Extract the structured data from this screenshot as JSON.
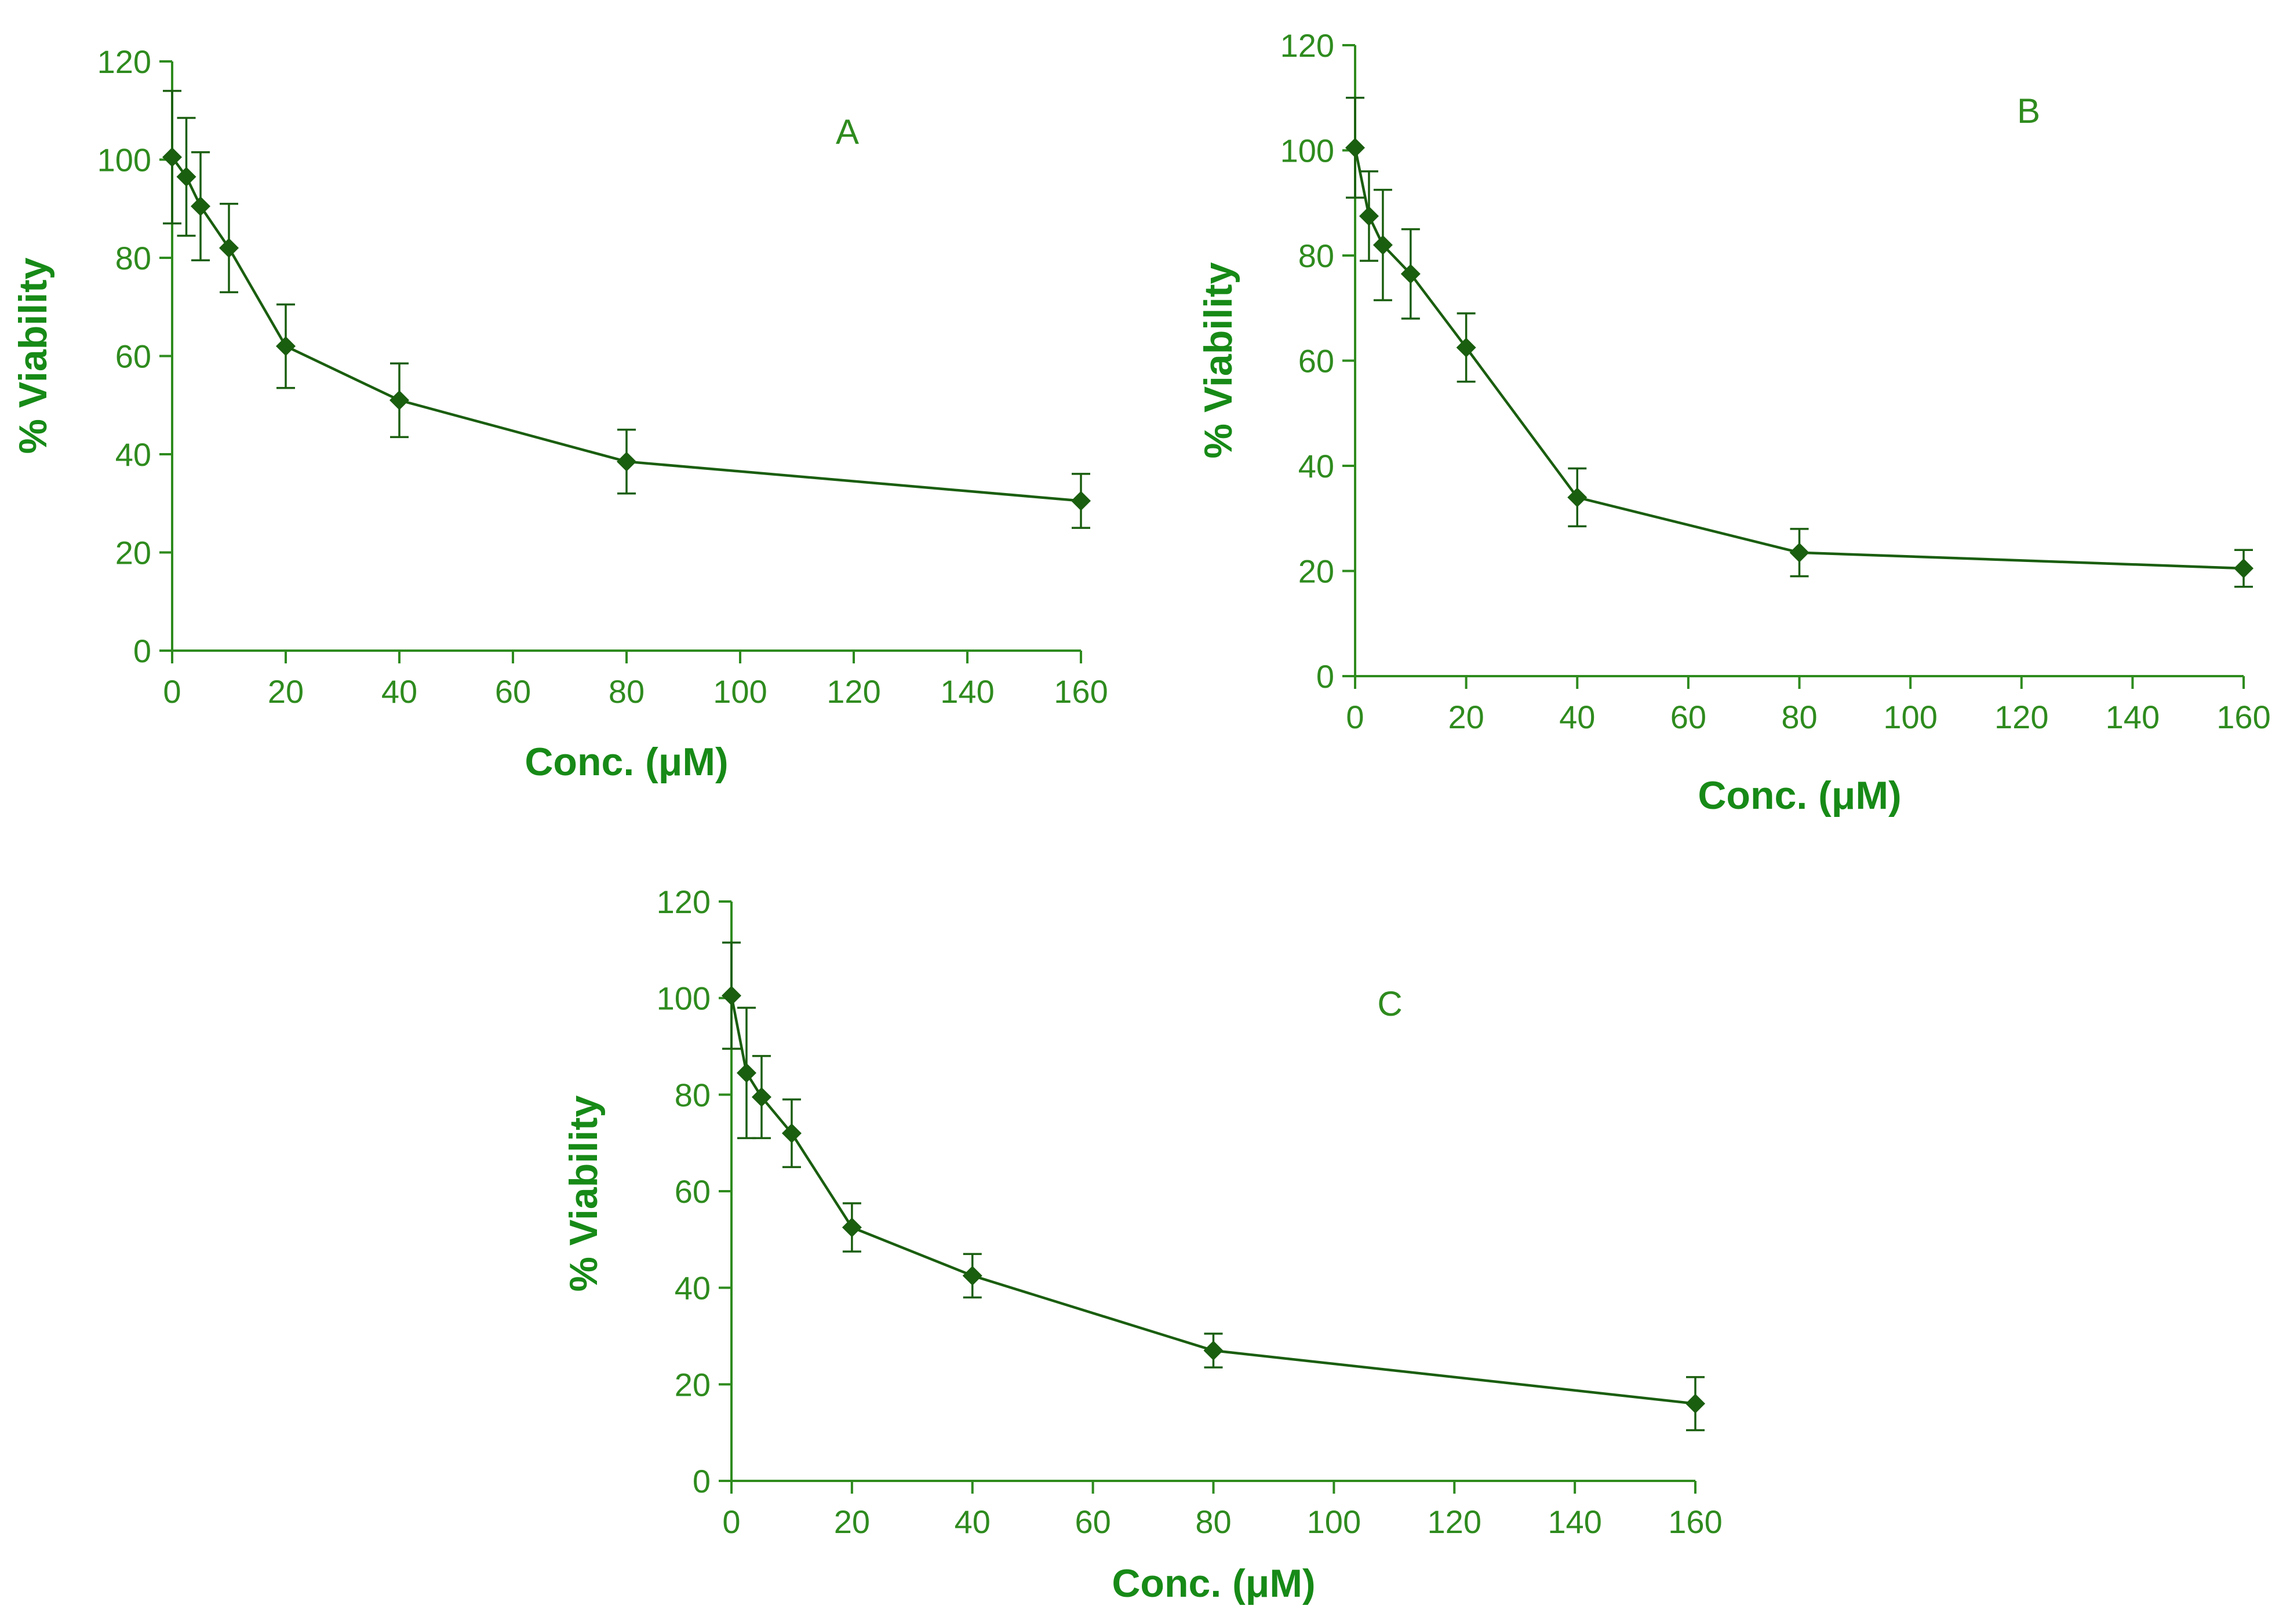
{
  "colors": {
    "series": "#1a5e0f",
    "axis": "#2e8b1e",
    "text": "#2e8b1e",
    "title": "#178a17"
  },
  "chart_data": [
    {
      "type": "line",
      "panel": "A",
      "xlabel": "Conc. (μM)",
      "ylabel": "% Viability",
      "xlim": [
        0,
        160
      ],
      "ylim": [
        0,
        120
      ],
      "xticks": [
        0,
        20,
        40,
        60,
        80,
        100,
        120,
        140,
        160
      ],
      "yticks": [
        0,
        20,
        40,
        60,
        80,
        100,
        120
      ],
      "marker": "diamond",
      "error_bars": true,
      "points": [
        {
          "x": 0,
          "y": 100.5,
          "err": 13.5
        },
        {
          "x": 2.5,
          "y": 96.5,
          "err": 12
        },
        {
          "x": 5,
          "y": 90.5,
          "err": 11
        },
        {
          "x": 10,
          "y": 82,
          "err": 9
        },
        {
          "x": 20,
          "y": 62,
          "err": 8.5
        },
        {
          "x": 40,
          "y": 51,
          "err": 7.5
        },
        {
          "x": 80,
          "y": 38.5,
          "err": 6.5
        },
        {
          "x": 160,
          "y": 30.5,
          "err": 5.5
        }
      ]
    },
    {
      "type": "line",
      "panel": "B",
      "xlabel": "Conc. (μM)",
      "ylabel": "% Viability",
      "xlim": [
        0,
        160
      ],
      "ylim": [
        0,
        120
      ],
      "xticks": [
        0,
        20,
        40,
        60,
        80,
        100,
        120,
        140,
        160
      ],
      "yticks": [
        0,
        20,
        40,
        60,
        80,
        100,
        120
      ],
      "marker": "diamond",
      "error_bars": true,
      "points": [
        {
          "x": 0,
          "y": 100.5,
          "err": 9.5
        },
        {
          "x": 2.5,
          "y": 87.5,
          "err": 8.5
        },
        {
          "x": 5,
          "y": 82,
          "err": 10.5
        },
        {
          "x": 10,
          "y": 76.5,
          "err": 8.5
        },
        {
          "x": 20,
          "y": 62.5,
          "err": 6.5
        },
        {
          "x": 40,
          "y": 34,
          "err": 5.5
        },
        {
          "x": 80,
          "y": 23.5,
          "err": 4.5
        },
        {
          "x": 160,
          "y": 20.5,
          "err": 3.5
        }
      ]
    },
    {
      "type": "line",
      "panel": "C",
      "xlabel": "Conc. (μM)",
      "ylabel": "% Viability",
      "xlim": [
        0,
        160
      ],
      "ylim": [
        0,
        120
      ],
      "xticks": [
        0,
        20,
        40,
        60,
        80,
        100,
        120,
        140,
        160
      ],
      "yticks": [
        0,
        20,
        40,
        60,
        80,
        100,
        120
      ],
      "marker": "diamond",
      "error_bars": true,
      "points": [
        {
          "x": 0,
          "y": 100.5,
          "err": 11
        },
        {
          "x": 2.5,
          "y": 84.5,
          "err": 13.5
        },
        {
          "x": 5,
          "y": 79.5,
          "err": 8.5
        },
        {
          "x": 10,
          "y": 72,
          "err": 7
        },
        {
          "x": 20,
          "y": 52.5,
          "err": 5
        },
        {
          "x": 40,
          "y": 42.5,
          "err": 4.5
        },
        {
          "x": 80,
          "y": 27,
          "err": 3.5
        },
        {
          "x": 160,
          "y": 16,
          "err": 5.5
        }
      ]
    }
  ]
}
